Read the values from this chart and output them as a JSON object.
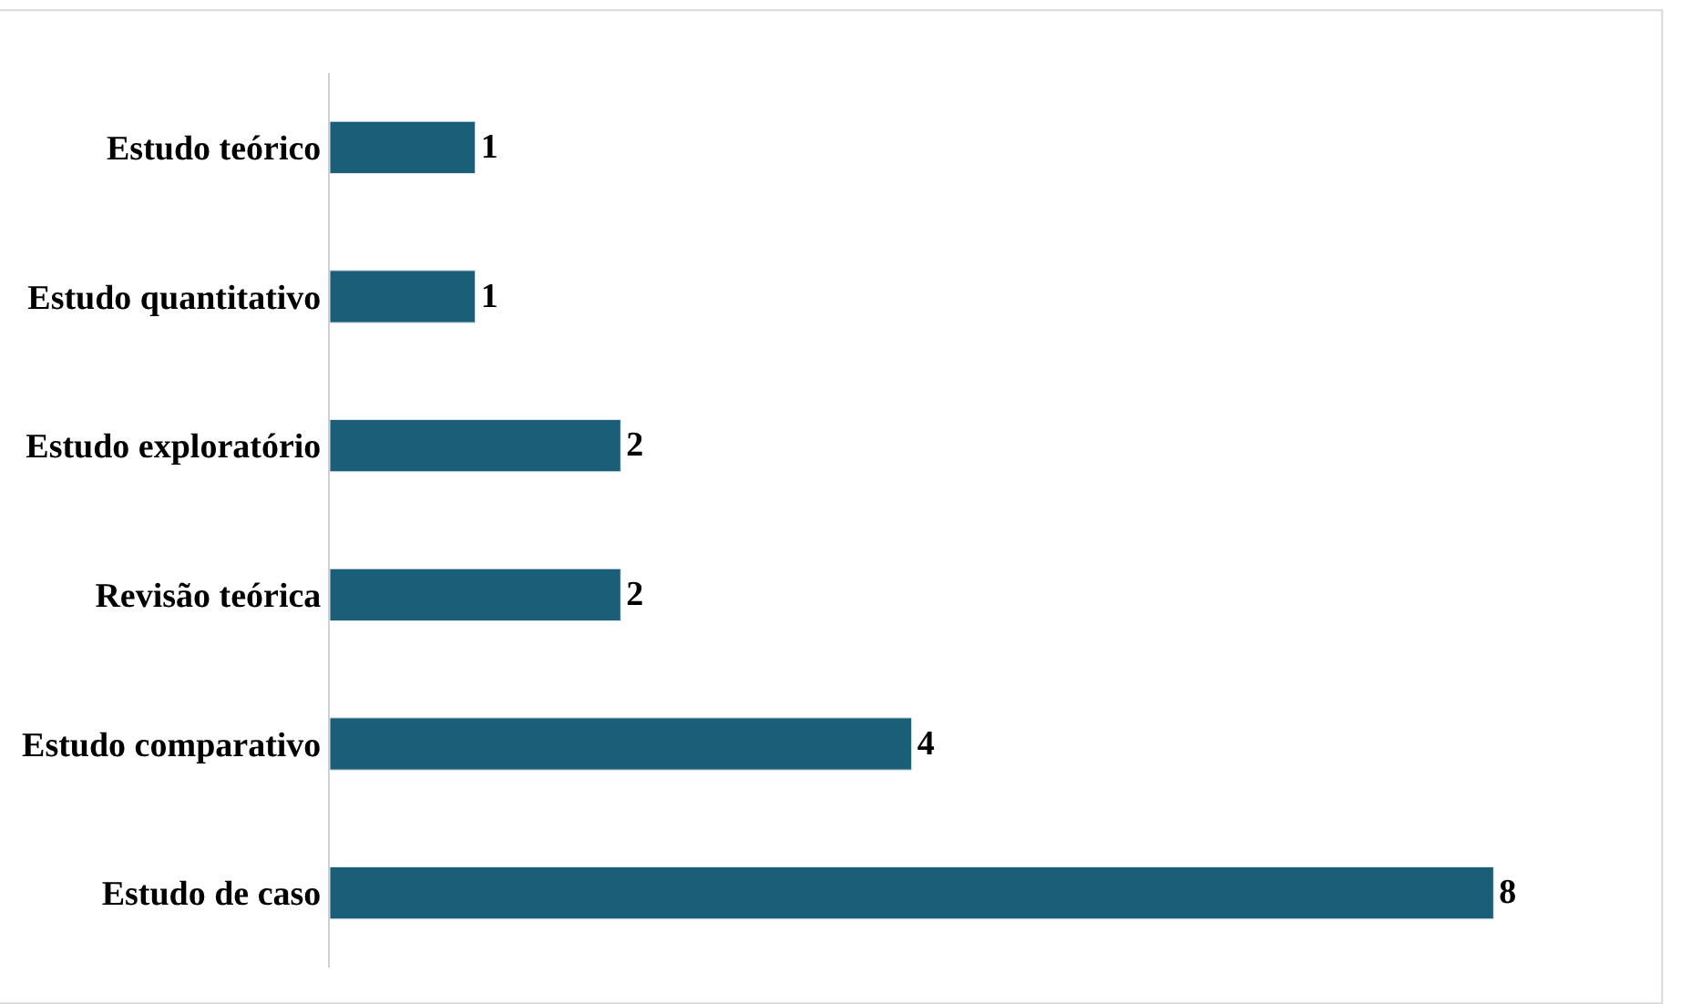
{
  "chart_data": {
    "type": "bar",
    "orientation": "horizontal",
    "categories": [
      "Estudo teórico",
      "Estudo quantitativo",
      "Estudo exploratório",
      "Revisão teórica",
      "Estudo comparativo",
      "Estudo de caso"
    ],
    "values": [
      1,
      1,
      2,
      2,
      4,
      8
    ],
    "color": "#1b5e78",
    "data_labels": true
  }
}
